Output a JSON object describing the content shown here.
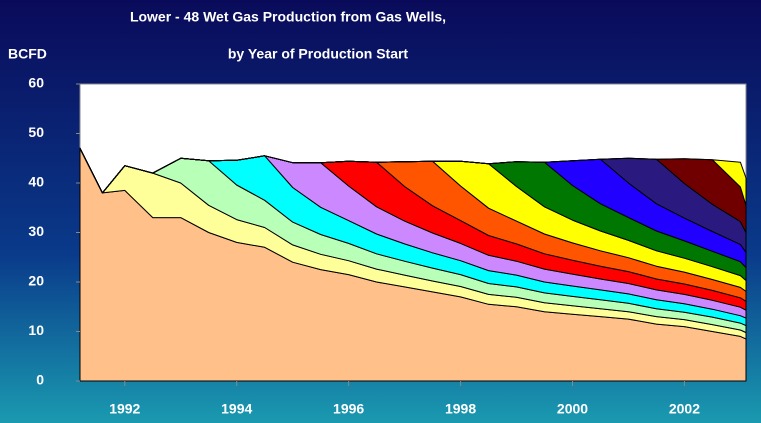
{
  "chart_data": {
    "type": "stacked_area",
    "title": "Lower - 48 Wet Gas Production from Gas Wells,",
    "subtitle": "by Year of Production Start",
    "y_label": "BCFD",
    "x": [
      1991.2,
      1991.6,
      1992,
      1992.5,
      1993,
      1993.5,
      1994,
      1994.5,
      1995,
      1995.5,
      1996,
      1996.5,
      1997,
      1997.5,
      1998,
      1998.5,
      1999,
      1999.5,
      2000,
      2000.5,
      2001,
      2001.5,
      2002,
      2002.5,
      2003,
      2003.1
    ],
    "xlim": [
      1991.2,
      2003.1
    ],
    "xticks": [
      1992,
      1994,
      1996,
      1998,
      2000,
      2002
    ],
    "ylim": [
      0,
      60
    ],
    "yticks": [
      0,
      10,
      20,
      30,
      40,
      50,
      60
    ],
    "series": [
      {
        "color": "#ffc08a",
        "values": [
          47,
          38,
          38.5,
          33,
          33,
          30,
          28,
          27,
          24,
          22.5,
          21.5,
          20,
          19,
          18,
          17,
          15.5,
          15,
          14,
          13.5,
          13,
          12.5,
          11.5,
          11,
          10,
          9,
          8.5
        ]
      },
      {
        "color": "#ffff99",
        "values": [
          0,
          0,
          5,
          9,
          7,
          5.5,
          4.6,
          4,
          3.5,
          3.1,
          2.8,
          2.6,
          2.4,
          2.2,
          2.1,
          2,
          1.9,
          1.8,
          1.7,
          1.6,
          1.5,
          1.5,
          1.4,
          1.4,
          1.3,
          1.3
        ]
      },
      {
        "color": "#b8ffb8",
        "values": [
          0,
          0,
          0,
          0,
          5,
          9,
          7,
          5.5,
          4.6,
          4,
          3.5,
          3.1,
          2.8,
          2.6,
          2.4,
          2.2,
          2.1,
          2,
          1.9,
          1.8,
          1.7,
          1.6,
          1.5,
          1.5,
          1.4,
          1.4
        ]
      },
      {
        "color": "#00ffff",
        "values": [
          0,
          0,
          0,
          0,
          0,
          0,
          5,
          9,
          7,
          5.5,
          4.6,
          4,
          3.5,
          3.1,
          2.8,
          2.6,
          2.4,
          2.2,
          2.1,
          2,
          1.9,
          1.8,
          1.7,
          1.6,
          1.5,
          1.5
        ]
      },
      {
        "color": "#cc88ff",
        "values": [
          0,
          0,
          0,
          0,
          0,
          0,
          0,
          0,
          5,
          9,
          7,
          5.5,
          4.6,
          4,
          3.5,
          3.1,
          2.8,
          2.6,
          2.4,
          2.2,
          2.1,
          2,
          1.9,
          1.8,
          1.7,
          1.6
        ]
      },
      {
        "color": "#ff0000",
        "values": [
          0,
          0,
          0,
          0,
          0,
          0,
          0,
          0,
          0,
          0,
          5,
          9,
          7,
          5.5,
          4.6,
          4,
          3.5,
          3.1,
          2.8,
          2.6,
          2.4,
          2.2,
          2.1,
          2,
          1.9,
          1.8
        ]
      },
      {
        "color": "#ff5500",
        "values": [
          0,
          0,
          0,
          0,
          0,
          0,
          0,
          0,
          0,
          0,
          0,
          0,
          5,
          9,
          7,
          5.5,
          4.6,
          4,
          3.5,
          3.1,
          2.8,
          2.6,
          2.4,
          2.2,
          2.1,
          2
        ]
      },
      {
        "color": "#ffff00",
        "values": [
          0,
          0,
          0,
          0,
          0,
          0,
          0,
          0,
          0,
          0,
          0,
          0,
          0,
          0,
          5,
          9,
          7,
          5.5,
          4.6,
          4,
          3.5,
          3.1,
          2.8,
          2.6,
          2.4,
          2.2
        ]
      },
      {
        "color": "#007700",
        "values": [
          0,
          0,
          0,
          0,
          0,
          0,
          0,
          0,
          0,
          0,
          0,
          0,
          0,
          0,
          0,
          0,
          5,
          9,
          7,
          5.5,
          4.6,
          4,
          3.5,
          3.1,
          2.8,
          2.6
        ]
      },
      {
        "color": "#2200ff",
        "values": [
          0,
          0,
          0,
          0,
          0,
          0,
          0,
          0,
          0,
          0,
          0,
          0,
          0,
          0,
          0,
          0,
          0,
          0,
          5,
          9,
          7,
          5.5,
          4.6,
          4,
          3.5,
          3.1
        ]
      },
      {
        "color": "#2a1a80",
        "values": [
          0,
          0,
          0,
          0,
          0,
          0,
          0,
          0,
          0,
          0,
          0,
          0,
          0,
          0,
          0,
          0,
          0,
          0,
          0,
          0,
          5,
          9,
          7,
          5.5,
          4.6,
          4
        ]
      },
      {
        "color": "#700000",
        "values": [
          0,
          0,
          0,
          0,
          0,
          0,
          0,
          0,
          0,
          0,
          0,
          0,
          0,
          0,
          0,
          0,
          0,
          0,
          0,
          0,
          0,
          0,
          5,
          9,
          7,
          5.5
        ]
      },
      {
        "color": "#ffff00",
        "values": [
          0,
          0,
          0,
          0,
          0,
          0,
          0,
          0,
          0,
          0,
          0,
          0,
          0,
          0,
          0,
          0,
          0,
          0,
          0,
          0,
          0,
          0,
          0,
          0,
          5,
          5.5
        ]
      }
    ]
  }
}
